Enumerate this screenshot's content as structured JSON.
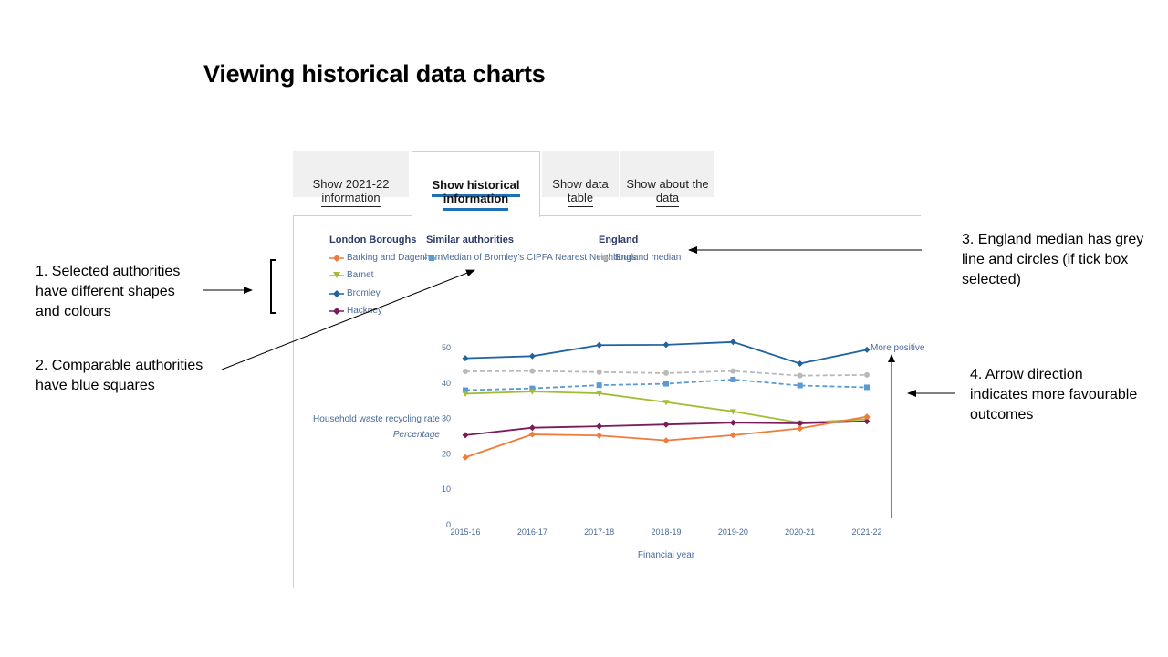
{
  "slide": {
    "title": "Viewing historical data charts"
  },
  "tabs": [
    {
      "label": "Show 2021-22 information",
      "active": false
    },
    {
      "label": "Show historical information",
      "active": true
    },
    {
      "label": "Show data table",
      "active": false
    },
    {
      "label": "Show about the data",
      "active": false
    }
  ],
  "legend": {
    "groups": [
      {
        "heading": "London Boroughs",
        "items": [
          "Barking and Dagenham",
          "Barnet",
          "Bromley",
          "Hackney"
        ]
      },
      {
        "heading": "Similar authorities",
        "items": [
          "Median of Bromley's CIPFA Nearest Neighbours"
        ]
      },
      {
        "heading": "England",
        "items": [
          "England median"
        ]
      }
    ]
  },
  "chart_data": {
    "type": "line",
    "ylabel": "Household waste recycling rate",
    "ylabel_unit": "Percentage",
    "xlabel": "Financial year",
    "direction_label": "More positive",
    "ylim": [
      0,
      50
    ],
    "yticks": [
      0,
      10,
      20,
      30,
      40,
      50
    ],
    "categories": [
      "2015-16",
      "2016-17",
      "2017-18",
      "2018-19",
      "2019-20",
      "2020-21",
      "2021-22"
    ],
    "series": [
      {
        "name": "Barking and Dagenham",
        "color": "#f07a3a",
        "marker": "diamond",
        "dashed": false,
        "values": [
          19,
          25.5,
          25.2,
          23.8,
          25.3,
          27.2,
          30.5
        ]
      },
      {
        "name": "Barnet",
        "color": "#a2bd35",
        "marker": "triangle",
        "dashed": false,
        "values": [
          37,
          37.6,
          37.1,
          34.6,
          32,
          28.8,
          29.8
        ]
      },
      {
        "name": "Bromley",
        "color": "#2063a0",
        "marker": "diamond",
        "dashed": false,
        "values": [
          47,
          47.6,
          50.7,
          50.8,
          51.6,
          45.5,
          49.4
        ]
      },
      {
        "name": "Hackney",
        "color": "#7b1c5a",
        "marker": "diamond",
        "dashed": false,
        "values": [
          25.3,
          27.4,
          27.8,
          28.3,
          28.8,
          28.6,
          29.2
        ]
      },
      {
        "name": "Median of Bromley's CIPFA Nearest Neighbours",
        "color": "#5b9bd5",
        "marker": "square",
        "dashed": true,
        "values": [
          38,
          38.5,
          39.4,
          39.8,
          41,
          39.3,
          38.8
        ]
      },
      {
        "name": "England median",
        "color": "#b9b9b9",
        "marker": "circle",
        "dashed": true,
        "values": [
          43.3,
          43.4,
          43.1,
          42.8,
          43.4,
          42.1,
          42.3
        ]
      }
    ]
  },
  "annotations": {
    "a1": [
      "1. Selected authorities",
      "have different shapes",
      "and colours"
    ],
    "a2": [
      "2. Comparable authorities",
      "have blue squares"
    ],
    "a3": [
      "3. England median has grey",
      "line and circles (if tick box",
      "selected)"
    ],
    "a4": [
      "4. Arrow direction",
      "indicates more favourable",
      "outcomes"
    ]
  }
}
